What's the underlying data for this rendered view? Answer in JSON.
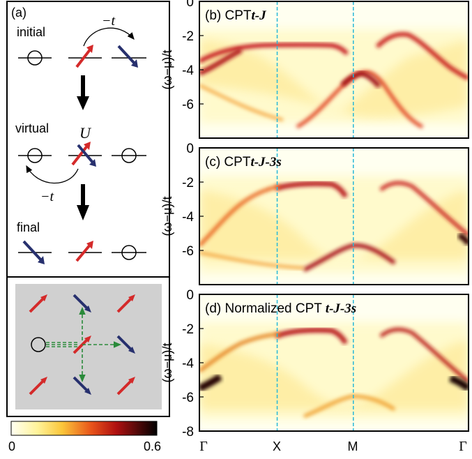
{
  "panel_a": {
    "label": "(a)",
    "initial": "initial",
    "virtual": "virtual",
    "final": "final",
    "hop_top": "−t",
    "hop_bottom": "−t",
    "U": "U"
  },
  "colorbar": {
    "min_label": "0",
    "max_label": "0.6",
    "min": 0,
    "max": 0.6
  },
  "axes": {
    "ylabel": "(ω−μ)/t",
    "yticks": [
      "0",
      "-2",
      "-4",
      "-6",
      "-8"
    ],
    "xticks": [
      "Γ",
      "X",
      "M",
      "Γ"
    ]
  },
  "panels": [
    {
      "id": "b",
      "title_prefix": "(b) CPT",
      "title_model": "t-J"
    },
    {
      "id": "c",
      "title_prefix": "(c) CPT",
      "title_model": "t-J-3s"
    },
    {
      "id": "d",
      "title_prefix": "(d) Normalized CPT ",
      "title_model": "t-J-3s"
    }
  ],
  "colors": {
    "spin_up": "#d42a2a",
    "spin_down": "#27306e",
    "hop_path": "#2a8a3a",
    "guide_line": "#26b8d8",
    "lattice_bg": "#d0d0d0"
  }
}
